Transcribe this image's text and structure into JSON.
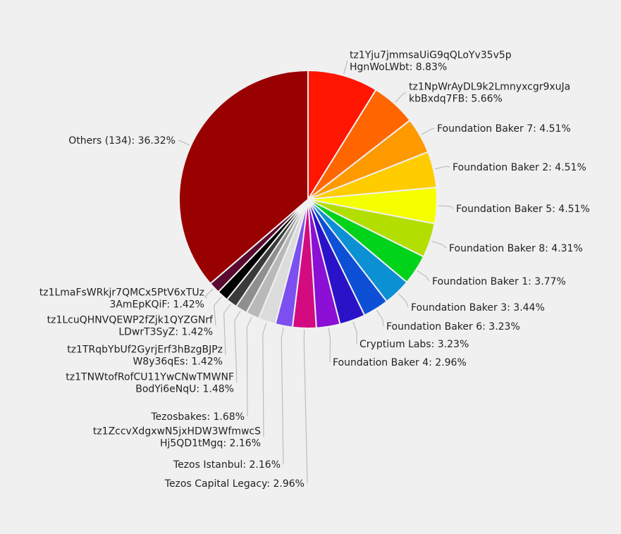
{
  "chart_data": {
    "type": "pie",
    "title": "",
    "slices": [
      {
        "label": [
          "tz1Yju7jmmsaUiG9qQLoYv35v5p",
          "HgnWoLWbt: 8.83%"
        ],
        "value": 8.83,
        "color": "#ff1500"
      },
      {
        "label": [
          "tz1NpWrAyDL9k2Lmnyxcgr9xuJa",
          "kbBxdq7FB: 5.66%"
        ],
        "value": 5.66,
        "color": "#ff6600"
      },
      {
        "label": [
          "Foundation Baker 7: 4.51%"
        ],
        "value": 4.51,
        "color": "#ff9900"
      },
      {
        "label": [
          "Foundation Baker 2: 4.51%"
        ],
        "value": 4.51,
        "color": "#ffcc00"
      },
      {
        "label": [
          "Foundation Baker 5: 4.51%"
        ],
        "value": 4.51,
        "color": "#f5ff00"
      },
      {
        "label": [
          "Foundation Baker 8: 4.31%"
        ],
        "value": 4.31,
        "color": "#b3df00"
      },
      {
        "label": [
          "Foundation Baker 1: 3.77%"
        ],
        "value": 3.77,
        "color": "#00d31a"
      },
      {
        "label": [
          "Foundation Baker 3: 3.44%"
        ],
        "value": 3.44,
        "color": "#0b90d4"
      },
      {
        "label": [
          "Foundation Baker 6: 3.23%"
        ],
        "value": 3.23,
        "color": "#0d50d6"
      },
      {
        "label": [
          "Cryptium Labs: 3.23%"
        ],
        "value": 3.23,
        "color": "#2a12c9"
      },
      {
        "label": [
          "Foundation Baker 4: 2.96%"
        ],
        "value": 2.96,
        "color": "#8b0fd4"
      },
      {
        "label": [
          "Tezos Capital Legacy: 2.96%"
        ],
        "value": 2.96,
        "color": "#d40a80"
      },
      {
        "label": [
          "Tezos Istanbul: 2.16%"
        ],
        "value": 2.16,
        "color": "#7b4ff0"
      },
      {
        "label": [
          "tz1ZccvXdgxwN5jxHDW3WfmwcS",
          "Hj5QD1tMgq: 2.16%"
        ],
        "value": 2.16,
        "color": "#dcdcdc"
      },
      {
        "label": [
          "Tezosbakes: 1.68%"
        ],
        "value": 1.68,
        "color": "#b9b9b9"
      },
      {
        "label": [
          "tz1TNWtofRofCU11YwCNwTMWNF",
          "BodYi6eNqU: 1.48%"
        ],
        "value": 1.48,
        "color": "#8f8f8f"
      },
      {
        "label": [
          "tz1TRqbYbUf2GyrjErf3hBzgBJPz",
          "W8y36qEs: 1.42%"
        ],
        "value": 1.42,
        "color": "#3a3a3a"
      },
      {
        "label": [
          "tz1LcuQHNVQEWP2fZjk1QYZGNrf",
          "LDwrT3SyZ: 1.42%"
        ],
        "value": 1.42,
        "color": "#000000"
      },
      {
        "label": [
          "tz1LmaFsWRkjr7QMCx5PtV6xTUz",
          "3AmEpKQiF: 1.42%"
        ],
        "value": 1.42,
        "color": "#5a0a30"
      },
      {
        "label": [
          "Others (134): 36.32%"
        ],
        "value": 36.32,
        "color": "#c99a2e"
      }
    ],
    "others_color": "#990000",
    "legend": "none"
  }
}
